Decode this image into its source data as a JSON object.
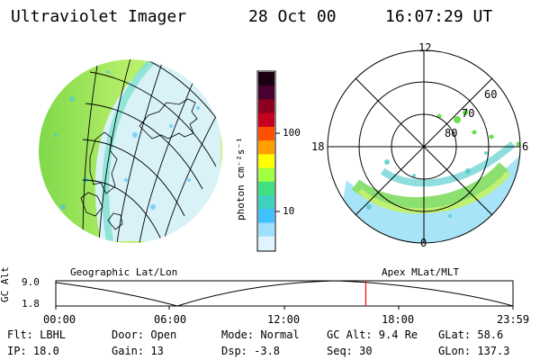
{
  "header": {
    "instrument": "Ultraviolet Imager",
    "date": "28 Oct 00",
    "time": "16:07:29 UT"
  },
  "colorbar": {
    "unit_label": "photon cm⁻²s⁻¹",
    "ticks": [
      "100",
      "10"
    ],
    "colors": [
      "#1a0010",
      "#4a0030",
      "#8b0020",
      "#c80020",
      "#ff5000",
      "#ffa000",
      "#ffff00",
      "#a0ff40",
      "#40e080",
      "#40d0c0",
      "#40c0ff",
      "#a0e0ff",
      "#e0f4ff"
    ]
  },
  "left_panel": {
    "label": "Geographic Lat/Lon"
  },
  "right_panel": {
    "label": "Apex MLat/MLT",
    "mlt_labels": {
      "top": "12",
      "left": "18",
      "right": "6",
      "bottom": "0"
    },
    "lat_labels": [
      "60",
      "70",
      "80"
    ]
  },
  "timeline": {
    "axis_label": "GC Alt",
    "y_ticks": [
      "9.0",
      "1.8"
    ],
    "x_ticks": [
      "00:00",
      "06:00",
      "12:00",
      "18:00",
      "23:59"
    ],
    "current_time_fraction": 0.678,
    "marker_color": "#ff0000"
  },
  "info": {
    "filter": "Flt: LBHL",
    "door": "Door: Open",
    "mode": "Mode: Normal",
    "gc_alt": "GC Alt: 9.4 Re",
    "glat": "GLat: 58.6",
    "ip": "IP: 18.0",
    "gain": "Gain: 13",
    "dsp": "Dsp:   -3.8",
    "seq": "Seq: 30",
    "glon": "GLon: 137.3"
  }
}
